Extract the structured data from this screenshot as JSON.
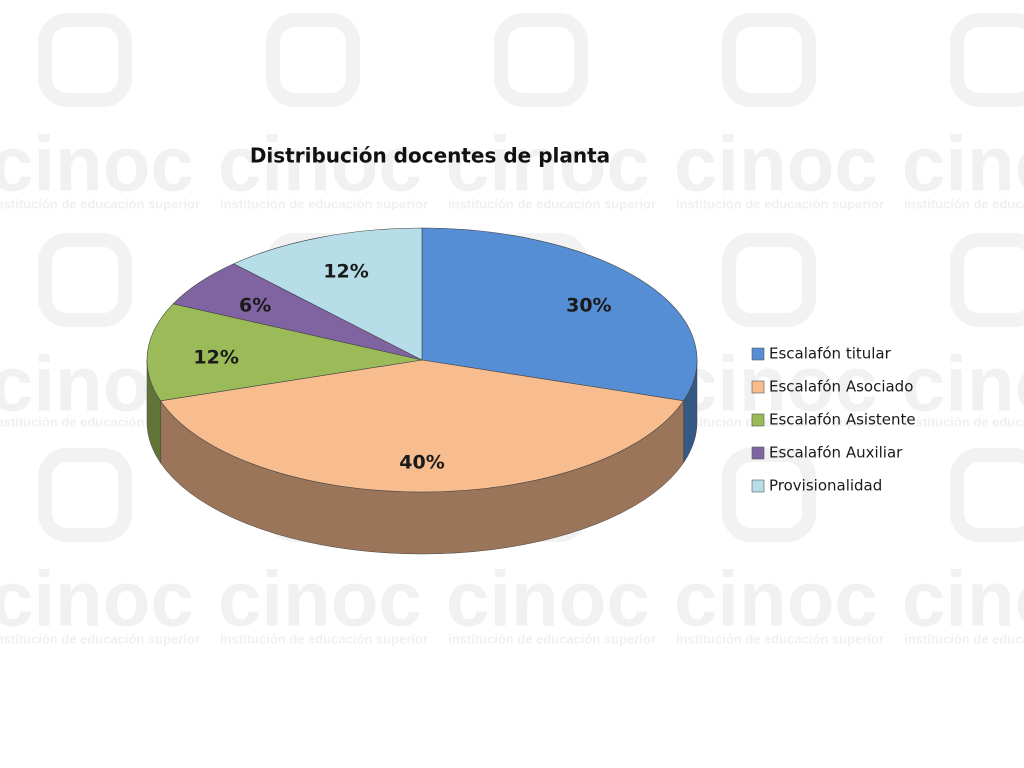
{
  "watermark": {
    "text": "cinoc",
    "subtext": "institución de educación superior"
  },
  "chart_data": {
    "type": "pie3d",
    "title": "Distribución docentes de planta",
    "categories": [
      "Escalafón titular",
      "Escalafón Asociado",
      "Escalafón Asistente",
      "Escalafón Auxiliar",
      "Provisionalidad"
    ],
    "values": [
      30,
      40,
      12,
      6,
      12
    ],
    "value_labels": [
      "30%",
      "40%",
      "12%",
      "6%",
      "12%"
    ],
    "colors": [
      "#558ed5",
      "#f8bd8f",
      "#9bbb59",
      "#8064a2",
      "#b7dee8"
    ],
    "legend": "right"
  }
}
